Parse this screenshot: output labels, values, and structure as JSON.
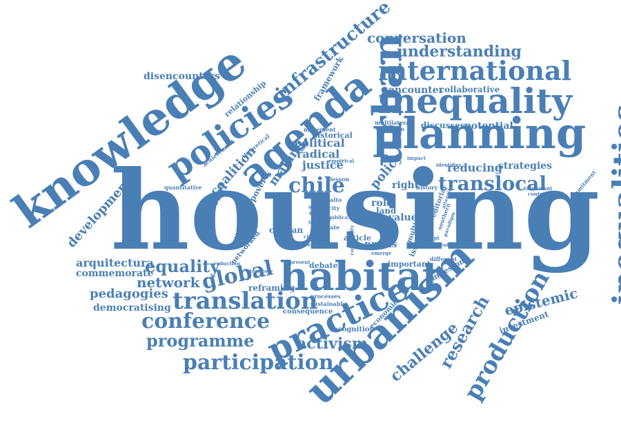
{
  "colors": {
    "word": "#4a7fb5",
    "background": "#ffffff"
  },
  "words": [
    "housing",
    "knowledge",
    "habitat",
    "planning",
    "urbanism",
    "urban",
    "inequality",
    "agenda",
    "policies",
    "practice",
    "international",
    "translation",
    "inequalities",
    "production",
    "understanding",
    "translocal",
    "conference",
    "participation",
    "programme",
    "research",
    "infrastructure",
    "chile",
    "conversation",
    "global",
    "equality",
    "network",
    "epistemic",
    "challenge",
    "activism",
    "disencounters",
    "development",
    "arquitectura",
    "commemorate",
    "pedagogies",
    "democratising",
    "coalition",
    "social",
    "making",
    "poverty",
    "justice",
    "radical",
    "political",
    "historical",
    "policy",
    "right",
    "reducing",
    "strategies",
    "potential",
    "discusses",
    "collaborative",
    "encounter",
    "framework",
    "relationship",
    "theoretical",
    "achievement",
    "quantitative",
    "lesson",
    "empirical",
    "movement",
    "multilateral",
    "discussion",
    "impact",
    "identifies",
    "commitment",
    "contribute",
    "history",
    "editorial",
    "southern",
    "value",
    "role",
    "land",
    "article",
    "praxis",
    "issue",
    "debate",
    "important",
    "milestone",
    "different",
    "reframing",
    "processes",
    "sustainable",
    "consequence",
    "recognition",
    "economic",
    "investment",
    "networked",
    "institutional",
    "reduction",
    "territory",
    "present",
    "case",
    "scale",
    "community",
    "emerge",
    "diverse",
    "order",
    "concept",
    "pública",
    "ciudad",
    "chilean",
    "state",
    "city",
    "alto",
    "series",
    "other",
    "multiple",
    "argument",
    "paradigm",
    "oriented",
    "attention"
  ]
}
